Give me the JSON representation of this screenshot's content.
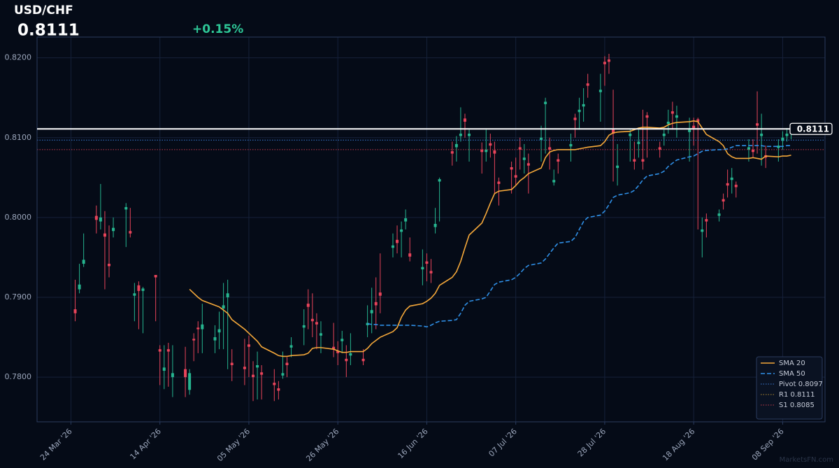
{
  "chart_data": {
    "type": "candlestick",
    "title": "USD/CHF",
    "change": "+0.15%",
    "last_price": {
      "value": 0.8111,
      "label": "0.8111"
    },
    "watermark": "MarketsFN.com",
    "up_color": "#26b58f",
    "down_color": "#e8445a",
    "grid": true,
    "legend": "lower right",
    "xlim": [
      "2026-03-16",
      "2026-09-18"
    ],
    "xticks": [
      {
        "value": "2026-03-24",
        "label": "24 Mar '26"
      },
      {
        "value": "2026-04-14",
        "label": "14 Apr '26"
      },
      {
        "value": "2026-05-05",
        "label": "05 May '26"
      },
      {
        "value": "2026-05-26",
        "label": "26 May '26"
      },
      {
        "value": "2026-06-16",
        "label": "16 Jun '26"
      },
      {
        "value": "2026-07-07",
        "label": "07 Jul '26"
      },
      {
        "value": "2026-07-28",
        "label": "28 Jul '26"
      },
      {
        "value": "2026-08-18",
        "label": "18 Aug '26"
      },
      {
        "value": "2026-09-08",
        "label": "08 Sep '26"
      }
    ],
    "ylim": [
      0.7744,
      0.8226
    ],
    "yticks": [
      {
        "value": 0.78,
        "label": "0.7800"
      },
      {
        "value": 0.79,
        "label": "0.7900"
      },
      {
        "value": 0.8,
        "label": "0.8000"
      },
      {
        "value": 0.81,
        "label": "0.8100"
      },
      {
        "value": 0.82,
        "label": "0.8200"
      }
    ],
    "x": [
      "2026-03-25",
      "2026-03-26",
      "2026-03-27",
      "2026-03-30",
      "2026-03-31",
      "2026-04-01",
      "2026-04-02",
      "2026-04-03",
      "2026-04-06",
      "2026-04-07",
      "2026-04-08",
      "2026-04-09",
      "2026-04-10",
      "2026-04-13",
      "2026-04-14",
      "2026-04-15",
      "2026-04-16",
      "2026-04-17",
      "2026-04-20",
      "2026-04-21",
      "2026-04-22",
      "2026-04-23",
      "2026-04-24",
      "2026-04-27",
      "2026-04-28",
      "2026-04-29",
      "2026-04-30",
      "2026-05-01",
      "2026-05-04",
      "2026-05-05",
      "2026-05-06",
      "2026-05-07",
      "2026-05-08",
      "2026-05-11",
      "2026-05-12",
      "2026-05-13",
      "2026-05-14",
      "2026-05-15",
      "2026-05-18",
      "2026-05-19",
      "2026-05-20",
      "2026-05-21",
      "2026-05-22",
      "2026-05-25",
      "2026-05-26",
      "2026-05-27",
      "2026-05-28",
      "2026-05-29",
      "2026-06-01",
      "2026-06-02",
      "2026-06-03",
      "2026-06-04",
      "2026-06-05",
      "2026-06-08",
      "2026-06-09",
      "2026-06-10",
      "2026-06-11",
      "2026-06-12",
      "2026-06-15",
      "2026-06-16",
      "2026-06-17",
      "2026-06-18",
      "2026-06-19",
      "2026-06-22",
      "2026-06-23",
      "2026-06-24",
      "2026-06-25",
      "2026-06-26",
      "2026-06-29",
      "2026-06-30",
      "2026-07-01",
      "2026-07-02",
      "2026-07-03",
      "2026-07-06",
      "2026-07-07",
      "2026-07-08",
      "2026-07-09",
      "2026-07-10",
      "2026-07-13",
      "2026-07-14",
      "2026-07-15",
      "2026-07-16",
      "2026-07-17",
      "2026-07-20",
      "2026-07-21",
      "2026-07-22",
      "2026-07-23",
      "2026-07-24",
      "2026-07-27",
      "2026-07-28",
      "2026-07-29",
      "2026-07-30",
      "2026-07-31",
      "2026-08-03",
      "2026-08-04",
      "2026-08-05",
      "2026-08-06",
      "2026-08-07",
      "2026-08-10",
      "2026-08-11",
      "2026-08-12",
      "2026-08-13",
      "2026-08-14",
      "2026-08-17",
      "2026-08-18",
      "2026-08-19",
      "2026-08-20",
      "2026-08-21",
      "2026-08-24",
      "2026-08-25",
      "2026-08-26",
      "2026-08-27",
      "2026-08-28",
      "2026-08-31",
      "2026-09-01",
      "2026-09-02",
      "2026-09-03",
      "2026-09-04",
      "2026-09-07",
      "2026-09-08",
      "2026-09-09",
      "2026-09-10"
    ],
    "open": [
      0.7885,
      0.791,
      0.7942,
      0.8002,
      0.7995,
      0.798,
      0.7942,
      0.7983,
      0.801,
      0.7983,
      0.7902,
      0.7915,
      0.7908,
      0.7928,
      0.7835,
      0.7808,
      0.7835,
      0.78,
      0.781,
      0.7784,
      0.7848,
      0.7862,
      0.786,
      0.7846,
      0.7856,
      0.7886,
      0.79,
      0.7818,
      0.7813,
      0.7841,
      0.7803,
      0.7812,
      0.7806,
      0.7793,
      0.7786,
      0.7802,
      0.7818,
      0.7837,
      0.7862,
      0.7892,
      0.7873,
      0.7869,
      0.7852,
      0.7838,
      0.7833,
      0.7845,
      0.7823,
      0.7827,
      0.7823,
      0.7865,
      0.788,
      0.7894,
      0.7906,
      0.7962,
      0.7972,
      0.7982,
      0.7995,
      0.7955,
      0.7935,
      0.7945,
      0.7933,
      0.7988,
      0.8045,
      0.8083,
      0.8088,
      0.8102,
      0.8124,
      0.8102,
      0.8085,
      0.8082,
      0.8093,
      0.8084,
      0.8045,
      0.8063,
      0.8053,
      0.8088,
      0.8072,
      0.8068,
      0.8097,
      0.8142,
      0.8088,
      0.8044,
      0.8073,
      0.8089,
      0.8125,
      0.8132,
      0.8139,
      0.8168,
      0.8157,
      0.8195,
      0.8198,
      0.811,
      0.8062,
      0.8102,
      0.8073,
      0.8092,
      0.8073,
      0.8128,
      0.8088,
      0.8102,
      0.8117,
      0.8133,
      0.8125,
      0.8107,
      0.8115,
      0.8123,
      0.7982,
      0.7998,
      0.8002,
      0.8023,
      0.8043,
      0.8047,
      0.8041,
      0.8085,
      0.8085,
      0.8118,
      0.8102,
      0.8078,
      0.8087,
      0.8096,
      0.8102,
      0.8105
    ],
    "high": [
      0.7922,
      0.7942,
      0.798,
      0.8015,
      0.8042,
      0.8008,
      0.799,
      0.8,
      0.8018,
      0.8012,
      0.7918,
      0.792,
      0.7913,
      0.7928,
      0.784,
      0.784,
      0.7843,
      0.784,
      0.7838,
      0.781,
      0.7855,
      0.787,
      0.7892,
      0.7865,
      0.7882,
      0.7918,
      0.7922,
      0.7835,
      0.7848,
      0.7852,
      0.782,
      0.7832,
      0.7815,
      0.781,
      0.7795,
      0.7832,
      0.7825,
      0.785,
      0.7885,
      0.791,
      0.7905,
      0.788,
      0.787,
      0.7868,
      0.7845,
      0.7858,
      0.784,
      0.7855,
      0.7835,
      0.789,
      0.7912,
      0.7925,
      0.7955,
      0.798,
      0.799,
      0.7995,
      0.801,
      0.7975,
      0.796,
      0.7955,
      0.7948,
      0.8012,
      0.805,
      0.8095,
      0.8102,
      0.8138,
      0.813,
      0.811,
      0.8094,
      0.811,
      0.8105,
      0.8095,
      0.805,
      0.807,
      0.8075,
      0.81,
      0.8092,
      0.808,
      0.8115,
      0.815,
      0.81,
      0.806,
      0.808,
      0.8105,
      0.813,
      0.815,
      0.8162,
      0.818,
      0.818,
      0.8202,
      0.8205,
      0.816,
      0.8092,
      0.811,
      0.8095,
      0.811,
      0.8135,
      0.8132,
      0.8095,
      0.811,
      0.8135,
      0.8145,
      0.814,
      0.8125,
      0.8125,
      0.8125,
      0.8,
      0.8005,
      0.801,
      0.803,
      0.806,
      0.8062,
      0.8045,
      0.8098,
      0.8098,
      0.8158,
      0.813,
      0.809,
      0.8098,
      0.8108,
      0.8112,
      0.8115
    ],
    "low": [
      0.787,
      0.7905,
      0.7938,
      0.798,
      0.7985,
      0.791,
      0.7925,
      0.7975,
      0.7963,
      0.7975,
      0.787,
      0.786,
      0.7855,
      0.787,
      0.779,
      0.7785,
      0.7788,
      0.7775,
      0.7775,
      0.7778,
      0.782,
      0.783,
      0.783,
      0.783,
      0.7835,
      0.7835,
      0.781,
      0.7795,
      0.779,
      0.78,
      0.777,
      0.7772,
      0.7772,
      0.777,
      0.7772,
      0.7798,
      0.78,
      0.7825,
      0.784,
      0.786,
      0.785,
      0.7835,
      0.783,
      0.7825,
      0.7815,
      0.783,
      0.78,
      0.7815,
      0.7815,
      0.785,
      0.7855,
      0.786,
      0.788,
      0.795,
      0.7955,
      0.795,
      0.7985,
      0.7945,
      0.7915,
      0.792,
      0.7918,
      0.798,
      0.7995,
      0.8065,
      0.807,
      0.8095,
      0.81,
      0.807,
      0.8055,
      0.807,
      0.8075,
      0.803,
      0.8015,
      0.803,
      0.804,
      0.806,
      0.8055,
      0.803,
      0.807,
      0.808,
      0.806,
      0.804,
      0.8055,
      0.807,
      0.81,
      0.811,
      0.812,
      0.815,
      0.812,
      0.8165,
      0.818,
      0.8045,
      0.804,
      0.807,
      0.806,
      0.8075,
      0.806,
      0.8075,
      0.8075,
      0.809,
      0.8105,
      0.811,
      0.81,
      0.807,
      0.809,
      0.7985,
      0.795,
      0.7975,
      0.7995,
      0.801,
      0.8025,
      0.803,
      0.8025,
      0.807,
      0.8075,
      0.808,
      0.8065,
      0.8062,
      0.807,
      0.8085,
      0.8095,
      0.8098
    ],
    "close": [
      0.788,
      0.7916,
      0.7947,
      0.7997,
      0.8,
      0.7976,
      0.7939,
      0.7987,
      0.8013,
      0.798,
      0.7905,
      0.7908,
      0.7911,
      0.7925,
      0.7832,
      0.7812,
      0.7832,
      0.7805,
      0.78,
      0.7805,
      0.7846,
      0.786,
      0.7866,
      0.785,
      0.786,
      0.789,
      0.7905,
      0.7815,
      0.781,
      0.7838,
      0.78,
      0.7815,
      0.7803,
      0.779,
      0.7783,
      0.7805,
      0.7815,
      0.784,
      0.7865,
      0.7888,
      0.787,
      0.7866,
      0.7855,
      0.7835,
      0.783,
      0.7848,
      0.782,
      0.783,
      0.782,
      0.7868,
      0.7884,
      0.789,
      0.7902,
      0.7965,
      0.7968,
      0.7985,
      0.7999,
      0.7951,
      0.7938,
      0.7942,
      0.793,
      0.7992,
      0.8048,
      0.808,
      0.8092,
      0.8105,
      0.812,
      0.8105,
      0.8082,
      0.8085,
      0.809,
      0.808,
      0.8042,
      0.806,
      0.805,
      0.8085,
      0.8075,
      0.8065,
      0.81,
      0.8145,
      0.8085,
      0.8047,
      0.807,
      0.8092,
      0.8122,
      0.8135,
      0.8142,
      0.8165,
      0.816,
      0.8192,
      0.8195,
      0.8105,
      0.8065,
      0.8105,
      0.807,
      0.8095,
      0.807,
      0.8125,
      0.8085,
      0.8105,
      0.812,
      0.813,
      0.8128,
      0.811,
      0.8112,
      0.812,
      0.7985,
      0.7995,
      0.8005,
      0.802,
      0.804,
      0.805,
      0.8038,
      0.8088,
      0.8082,
      0.8115,
      0.8105,
      0.8075,
      0.809,
      0.81,
      0.8105,
      0.8111
    ],
    "lines": [
      {
        "name": "SMA 20",
        "color": "#f5a83a",
        "style": "solid",
        "values": [
          null,
          null,
          null,
          null,
          null,
          null,
          null,
          null,
          null,
          null,
          null,
          null,
          null,
          null,
          null,
          null,
          null,
          null,
          null,
          0.791,
          0.7905,
          0.79,
          0.7896,
          0.789,
          0.7888,
          0.7884,
          0.788,
          0.7872,
          0.786,
          0.7855,
          0.785,
          0.7845,
          0.7838,
          0.783,
          0.7827,
          0.7826,
          0.7826,
          0.7827,
          0.7828,
          0.783,
          0.7836,
          0.7837,
          0.7837,
          0.7835,
          0.7833,
          0.7831,
          0.7831,
          0.7832,
          0.7832,
          0.7836,
          0.7842,
          0.7846,
          0.785,
          0.7857,
          0.7862,
          0.7875,
          0.7884,
          0.7889,
          0.7892,
          0.7895,
          0.7899,
          0.7905,
          0.7915,
          0.7925,
          0.7932,
          0.7945,
          0.7962,
          0.7978,
          0.7993,
          0.8005,
          0.8018,
          0.803,
          0.8033,
          0.8035,
          0.804,
          0.8046,
          0.805,
          0.8055,
          0.8062,
          0.8075,
          0.8082,
          0.8084,
          0.8085,
          0.8085,
          0.8085,
          0.8086,
          0.8087,
          0.8088,
          0.809,
          0.8095,
          0.8103,
          0.8106,
          0.8107,
          0.8108,
          0.811,
          0.8112,
          0.8113,
          0.8113,
          0.8112,
          0.8113,
          0.8116,
          0.8118,
          0.8119,
          0.812,
          0.8121,
          0.812,
          0.8112,
          0.8104,
          0.8095,
          0.809,
          0.808,
          0.8076,
          0.8074,
          0.8074,
          0.8075,
          0.8074,
          0.8073,
          0.8077,
          0.8076,
          0.8077,
          0.8077,
          0.8078
        ]
      },
      {
        "name": "SMA 50",
        "color": "#2f8fe6",
        "style": "dashed",
        "values": [
          null,
          null,
          null,
          null,
          null,
          null,
          null,
          null,
          null,
          null,
          null,
          null,
          null,
          null,
          null,
          null,
          null,
          null,
          null,
          null,
          null,
          null,
          null,
          null,
          null,
          null,
          null,
          null,
          null,
          null,
          null,
          null,
          null,
          null,
          null,
          null,
          null,
          null,
          null,
          null,
          null,
          null,
          null,
          null,
          null,
          null,
          null,
          null,
          null,
          0.7867,
          0.7866,
          0.7866,
          0.7865,
          0.7865,
          0.7865,
          0.7865,
          0.7865,
          0.7865,
          0.7864,
          0.7863,
          0.7865,
          0.7868,
          0.787,
          0.7871,
          0.7872,
          0.788,
          0.789,
          0.7895,
          0.7898,
          0.79,
          0.7908,
          0.7916,
          0.7919,
          0.7922,
          0.7925,
          0.793,
          0.7936,
          0.794,
          0.7943,
          0.7948,
          0.7955,
          0.7962,
          0.7968,
          0.797,
          0.7975,
          0.7985,
          0.7995,
          0.8,
          0.8003,
          0.8008,
          0.8016,
          0.8025,
          0.8028,
          0.8031,
          0.8034,
          0.804,
          0.8047,
          0.8052,
          0.8055,
          0.8058,
          0.8064,
          0.8068,
          0.8072,
          0.8076,
          0.8077,
          0.808,
          0.8083,
          0.8084,
          0.8085,
          0.8085,
          0.8086,
          0.8088,
          0.809,
          0.809,
          0.809,
          0.809,
          0.809,
          0.8089,
          0.8089,
          0.8089,
          0.809,
          0.809
        ]
      }
    ],
    "levels": [
      {
        "name": "Pivot 0.8097",
        "value": 0.8097,
        "color": "#3a7bd5"
      },
      {
        "name": "R1 0.8111",
        "value": 0.8111,
        "color": "#b08a2e"
      },
      {
        "name": "S1 0.8085",
        "value": 0.8085,
        "color": "#c0394b"
      }
    ]
  }
}
